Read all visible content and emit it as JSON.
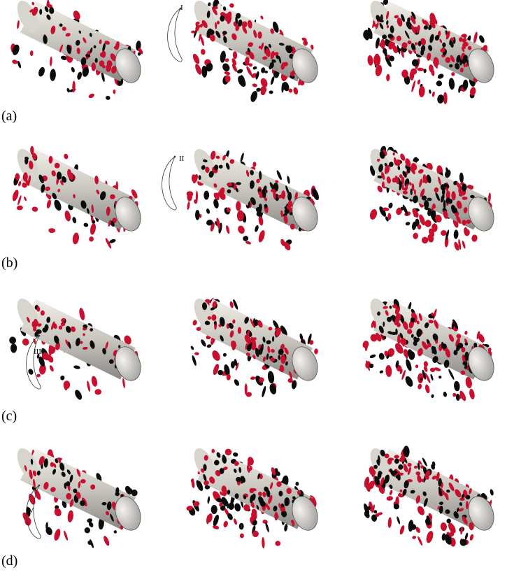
{
  "panels": [
    {
      "label": "(a)",
      "orbit_label": "I"
    },
    {
      "label": "(b)",
      "orbit_label": "II"
    },
    {
      "label": "(c)",
      "orbit_label": "III"
    },
    {
      "label": "(d)",
      "orbit_label": "IV"
    }
  ]
}
